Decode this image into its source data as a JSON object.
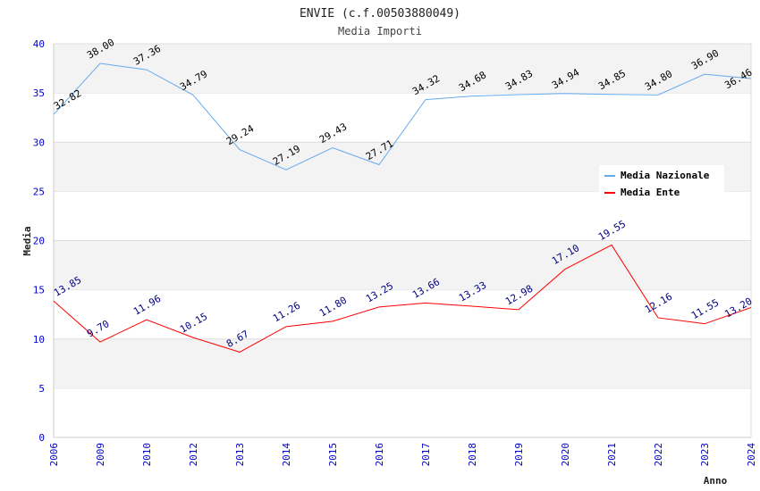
{
  "chart_data": {
    "type": "line",
    "title": "ENVIE (c.f.00503880049)",
    "subtitle": "Media Importi",
    "xlabel": "Anno",
    "ylabel": "Media",
    "ylim": [
      0,
      40
    ],
    "yticks": [
      "0",
      "5",
      "10",
      "15",
      "20",
      "25",
      "30",
      "35",
      "40"
    ],
    "categories": [
      "2006",
      "2009",
      "2010",
      "2012",
      "2013",
      "2014",
      "2015",
      "2016",
      "2017",
      "2018",
      "2019",
      "2020",
      "2021",
      "2022",
      "2023",
      "2024"
    ],
    "series": [
      {
        "name": "Media Nazionale",
        "color": "#66aaee",
        "label_color": "#000000",
        "values": [
          32.82,
          38.0,
          37.36,
          34.79,
          29.24,
          27.19,
          29.43,
          27.71,
          34.32,
          34.68,
          34.83,
          34.94,
          34.85,
          34.8,
          36.9,
          36.46
        ],
        "labels": [
          "32.82",
          "38.00",
          "37.36",
          "34.79",
          "29.24",
          "27.19",
          "29.43",
          "27.71",
          "34.32",
          "34.68",
          "34.83",
          "34.94",
          "34.85",
          "34.80",
          "36.90",
          "36.46"
        ]
      },
      {
        "name": "Media Ente",
        "color": "#ff0000",
        "label_color": "#000080",
        "values": [
          13.85,
          9.7,
          11.96,
          10.15,
          8.67,
          11.26,
          11.8,
          13.25,
          13.66,
          13.33,
          12.98,
          17.1,
          19.55,
          12.16,
          11.55,
          13.2
        ],
        "labels": [
          "13.85",
          "9.70",
          "11.96",
          "10.15",
          "8.67",
          "11.26",
          "11.80",
          "13.25",
          "13.66",
          "13.33",
          "12.98",
          "17.10",
          "19.55",
          "12.16",
          "11.55",
          "13.20"
        ]
      }
    ],
    "grid": true,
    "legend": "top-right"
  }
}
